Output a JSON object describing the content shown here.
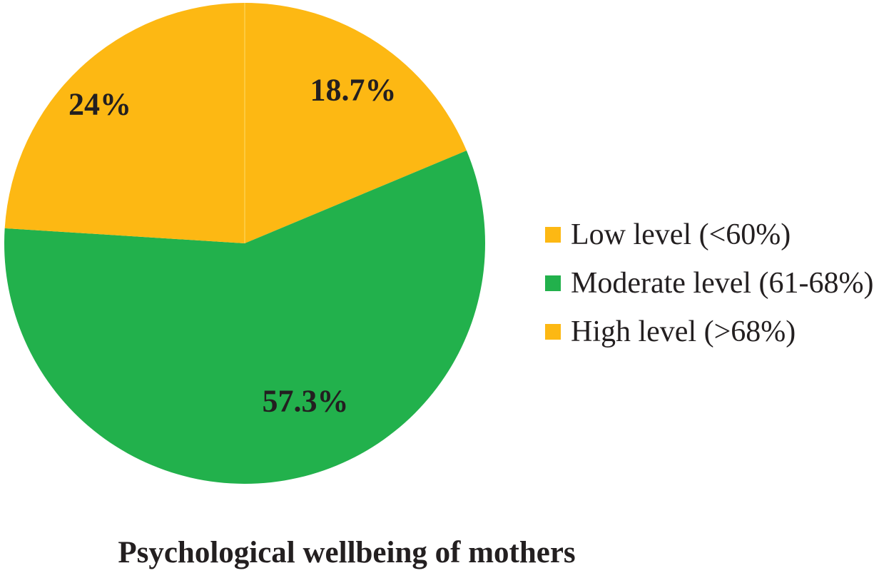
{
  "chart_data": {
    "type": "pie",
    "title": "Psychological wellbeing of mothers",
    "start_angle_deg": 0,
    "direction": "clockwise",
    "legend_position": "right",
    "label_color": "#231f20",
    "divider_color": "#ffd04d",
    "slices": [
      {
        "label": "Low level (<60%)",
        "value": 18.7,
        "display": "18.7%",
        "color": "#FDB813"
      },
      {
        "label": "Moderate level (61-68%)",
        "value": 57.3,
        "display": "57.3%",
        "color": "#22B14C"
      },
      {
        "label": "High level (>68%)",
        "value": 24.0,
        "display": "24%",
        "color": "#FDB813"
      }
    ]
  }
}
